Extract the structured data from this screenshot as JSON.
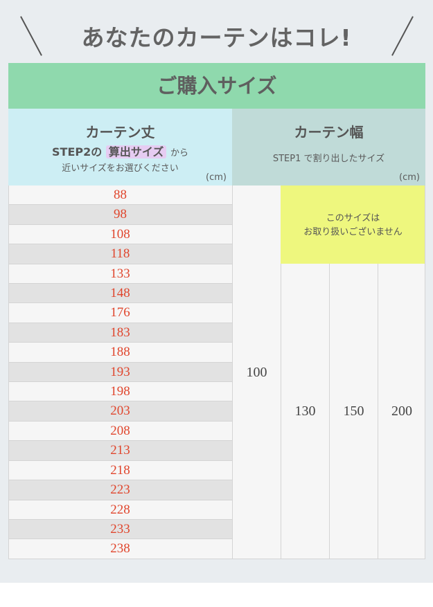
{
  "title": "あなたのカーテンはコレ!",
  "banner": "ご購入サイズ",
  "length_header": {
    "title": "カーテン丈",
    "line1_prefix": "STEP2の",
    "line1_highlight": "算出サイズ",
    "line1_suffix": "から",
    "line2": "近いサイズをお選びください",
    "unit": "(cm)"
  },
  "width_header": {
    "title": "カーテン幅",
    "subtitle": "STEP1 で割り出したサイズ",
    "unit": "(cm)"
  },
  "lengths": [
    "88",
    "98",
    "108",
    "118",
    "133",
    "148",
    "176",
    "183",
    "188",
    "193",
    "198",
    "203",
    "208",
    "213",
    "218",
    "223",
    "228",
    "233",
    "238"
  ],
  "widths": [
    "100",
    "130",
    "150",
    "200"
  ],
  "unavailable": {
    "line1": "このサイズは",
    "line2": "お取り扱いございません"
  },
  "colors": {
    "banner": "#8fd9ad",
    "length_header": "#cdeef4",
    "width_header": "#c0dbd8",
    "unavailable": "#eef77e",
    "length_text": "#e0452c",
    "highlight": "#e6ccf2"
  }
}
